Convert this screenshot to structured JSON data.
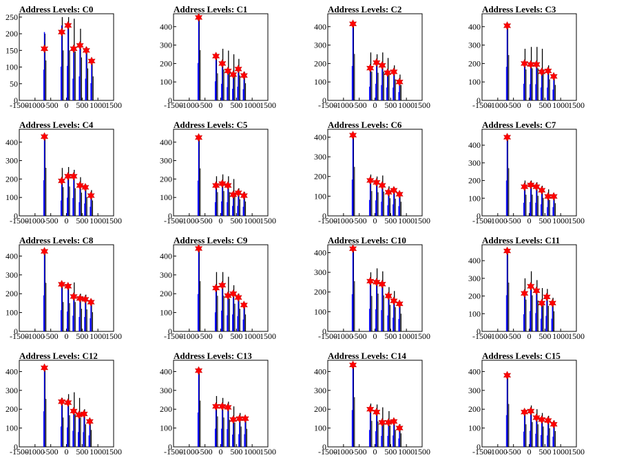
{
  "figure": {
    "colors": {
      "histogram": "#000000",
      "fit": "#0000ff",
      "marker": "#ff0000",
      "axis": "#000000"
    }
  },
  "chart_data": [
    {
      "type": "histogram",
      "title": "Address Levels: C0",
      "xlim": [
        -1500,
        1500
      ],
      "ylim": [
        0,
        260
      ],
      "yticks": [
        0,
        50,
        100,
        150,
        200,
        250
      ],
      "xticks": [
        -1500,
        -1000,
        -500,
        0,
        500,
        1000,
        1500
      ],
      "peaks": [
        {
          "x": -700,
          "hist": 200,
          "fit": 205,
          "marker": 155
        },
        {
          "x": -150,
          "hist": 250,
          "fit": 225,
          "marker": 205
        },
        {
          "x": 50,
          "hist": 250,
          "fit": 230,
          "marker": 225
        },
        {
          "x": 230,
          "hist": 245,
          "fit": 145,
          "marker": 155
        },
        {
          "x": 430,
          "hist": 215,
          "fit": 160,
          "marker": 165
        },
        {
          "x": 630,
          "hist": 160,
          "fit": 145,
          "marker": 150
        },
        {
          "x": 800,
          "hist": 120,
          "fit": 115,
          "marker": 118
        }
      ]
    },
    {
      "type": "histogram",
      "title": "Address Levels: C1",
      "xlim": [
        -1500,
        1500
      ],
      "ylim": [
        0,
        470
      ],
      "yticks": [
        0,
        100,
        200,
        300,
        400
      ],
      "xticks": [
        -1500,
        -1000,
        -500,
        0,
        500,
        1000,
        1500
      ],
      "peaks": [
        {
          "x": -700,
          "hist": 455,
          "fit": 450,
          "marker": 450
        },
        {
          "x": -150,
          "hist": 245,
          "fit": 230,
          "marker": 240
        },
        {
          "x": 50,
          "hist": 280,
          "fit": 200,
          "marker": 200
        },
        {
          "x": 230,
          "hist": 270,
          "fit": 160,
          "marker": 160
        },
        {
          "x": 400,
          "hist": 250,
          "fit": 140,
          "marker": 140
        },
        {
          "x": 560,
          "hist": 225,
          "fit": 165,
          "marker": 170
        },
        {
          "x": 740,
          "hist": 155,
          "fit": 135,
          "marker": 135
        }
      ]
    },
    {
      "type": "histogram",
      "title": "Address Levels: C2",
      "xlim": [
        -1500,
        1500
      ],
      "ylim": [
        0,
        470
      ],
      "yticks": [
        0,
        100,
        200,
        300,
        400
      ],
      "xticks": [
        -1500,
        -1000,
        -500,
        0,
        500,
        1000,
        1500
      ],
      "peaks": [
        {
          "x": -700,
          "hist": 420,
          "fit": 415,
          "marker": 415
        },
        {
          "x": -150,
          "hist": 260,
          "fit": 165,
          "marker": 175
        },
        {
          "x": 50,
          "hist": 250,
          "fit": 200,
          "marker": 205
        },
        {
          "x": 230,
          "hist": 260,
          "fit": 185,
          "marker": 190
        },
        {
          "x": 400,
          "hist": 230,
          "fit": 155,
          "marker": 150
        },
        {
          "x": 600,
          "hist": 190,
          "fit": 155,
          "marker": 155
        },
        {
          "x": 780,
          "hist": 140,
          "fit": 100,
          "marker": 100
        }
      ]
    },
    {
      "type": "histogram",
      "title": "Address Levels: C3",
      "xlim": [
        -1500,
        1500
      ],
      "ylim": [
        0,
        470
      ],
      "yticks": [
        0,
        100,
        200,
        300,
        400
      ],
      "xticks": [
        -1500,
        -1000,
        -500,
        0,
        500,
        1000,
        1500
      ],
      "peaks": [
        {
          "x": -700,
          "hist": 410,
          "fit": 405,
          "marker": 405
        },
        {
          "x": -150,
          "hist": 280,
          "fit": 200,
          "marker": 200
        },
        {
          "x": 50,
          "hist": 290,
          "fit": 195,
          "marker": 195
        },
        {
          "x": 230,
          "hist": 290,
          "fit": 195,
          "marker": 195
        },
        {
          "x": 400,
          "hist": 280,
          "fit": 155,
          "marker": 155
        },
        {
          "x": 600,
          "hist": 190,
          "fit": 155,
          "marker": 160
        },
        {
          "x": 780,
          "hist": 140,
          "fit": 130,
          "marker": 130
        }
      ]
    },
    {
      "type": "histogram",
      "title": "Address Levels: C4",
      "xlim": [
        -1500,
        1500
      ],
      "ylim": [
        0,
        470
      ],
      "yticks": [
        0,
        100,
        200,
        300,
        400
      ],
      "xticks": [
        -1500,
        -1000,
        -500,
        0,
        500,
        1000,
        1500
      ],
      "peaks": [
        {
          "x": -700,
          "hist": 435,
          "fit": 430,
          "marker": 430
        },
        {
          "x": -150,
          "hist": 260,
          "fit": 185,
          "marker": 190
        },
        {
          "x": 50,
          "hist": 265,
          "fit": 220,
          "marker": 215
        },
        {
          "x": 230,
          "hist": 250,
          "fit": 215,
          "marker": 215
        },
        {
          "x": 430,
          "hist": 210,
          "fit": 165,
          "marker": 165
        },
        {
          "x": 600,
          "hist": 170,
          "fit": 150,
          "marker": 155
        },
        {
          "x": 780,
          "hist": 140,
          "fit": 110,
          "marker": 110
        }
      ]
    },
    {
      "type": "histogram",
      "title": "Address Levels: C5",
      "xlim": [
        -1500,
        1500
      ],
      "ylim": [
        0,
        470
      ],
      "yticks": [
        0,
        100,
        200,
        300,
        400
      ],
      "xticks": [
        -1500,
        -1000,
        -500,
        0,
        500,
        1000,
        1500
      ],
      "peaks": [
        {
          "x": -700,
          "hist": 430,
          "fit": 425,
          "marker": 425
        },
        {
          "x": -150,
          "hist": 215,
          "fit": 165,
          "marker": 165
        },
        {
          "x": 50,
          "hist": 225,
          "fit": 175,
          "marker": 175
        },
        {
          "x": 230,
          "hist": 215,
          "fit": 165,
          "marker": 165
        },
        {
          "x": 400,
          "hist": 200,
          "fit": 120,
          "marker": 115
        },
        {
          "x": 560,
          "hist": 150,
          "fit": 120,
          "marker": 125
        },
        {
          "x": 740,
          "hist": 130,
          "fit": 110,
          "marker": 110
        }
      ]
    },
    {
      "type": "histogram",
      "title": "Address Levels: C6",
      "xlim": [
        -1500,
        1500
      ],
      "ylim": [
        0,
        440
      ],
      "yticks": [
        0,
        100,
        200,
        300,
        400
      ],
      "xticks": [
        -1500,
        -1000,
        -500,
        0,
        500,
        1000,
        1500
      ],
      "peaks": [
        {
          "x": -700,
          "hist": 415,
          "fit": 410,
          "marker": 410
        },
        {
          "x": -150,
          "hist": 210,
          "fit": 180,
          "marker": 180
        },
        {
          "x": 50,
          "hist": 200,
          "fit": 175,
          "marker": 170
        },
        {
          "x": 230,
          "hist": 205,
          "fit": 160,
          "marker": 155
        },
        {
          "x": 430,
          "hist": 150,
          "fit": 120,
          "marker": 120
        },
        {
          "x": 600,
          "hist": 145,
          "fit": 130,
          "marker": 130
        },
        {
          "x": 780,
          "hist": 120,
          "fit": 110,
          "marker": 110
        }
      ]
    },
    {
      "type": "histogram",
      "title": "Address Levels: C7",
      "xlim": [
        -1500,
        1500
      ],
      "ylim": [
        0,
        490
      ],
      "yticks": [
        0,
        100,
        200,
        300,
        400
      ],
      "xticks": [
        -1500,
        -1000,
        -500,
        0,
        500,
        1000,
        1500
      ],
      "peaks": [
        {
          "x": -700,
          "hist": 450,
          "fit": 445,
          "marker": 445
        },
        {
          "x": -150,
          "hist": 200,
          "fit": 165,
          "marker": 165
        },
        {
          "x": 50,
          "hist": 200,
          "fit": 175,
          "marker": 175
        },
        {
          "x": 230,
          "hist": 190,
          "fit": 165,
          "marker": 165
        },
        {
          "x": 400,
          "hist": 170,
          "fit": 145,
          "marker": 145
        },
        {
          "x": 600,
          "hist": 150,
          "fit": 110,
          "marker": 110
        },
        {
          "x": 780,
          "hist": 120,
          "fit": 110,
          "marker": 110
        }
      ]
    },
    {
      "type": "histogram",
      "title": "Address Levels: C8",
      "xlim": [
        -1500,
        1500
      ],
      "ylim": [
        0,
        460
      ],
      "yticks": [
        0,
        100,
        200,
        300,
        400
      ],
      "xticks": [
        -1500,
        -1000,
        -500,
        0,
        500,
        1000,
        1500
      ],
      "peaks": [
        {
          "x": -700,
          "hist": 430,
          "fit": 425,
          "marker": 425
        },
        {
          "x": -150,
          "hist": 260,
          "fit": 250,
          "marker": 250
        },
        {
          "x": 50,
          "hist": 250,
          "fit": 235,
          "marker": 240
        },
        {
          "x": 230,
          "hist": 260,
          "fit": 185,
          "marker": 185
        },
        {
          "x": 430,
          "hist": 200,
          "fit": 170,
          "marker": 175
        },
        {
          "x": 600,
          "hist": 195,
          "fit": 170,
          "marker": 170
        },
        {
          "x": 780,
          "hist": 170,
          "fit": 155,
          "marker": 155
        }
      ]
    },
    {
      "type": "histogram",
      "title": "Address Levels: C9",
      "xlim": [
        -1500,
        1500
      ],
      "ylim": [
        0,
        460
      ],
      "yticks": [
        0,
        100,
        200,
        300,
        400
      ],
      "xticks": [
        -1500,
        -1000,
        -500,
        0,
        500,
        1000,
        1500
      ],
      "peaks": [
        {
          "x": -700,
          "hist": 445,
          "fit": 440,
          "marker": 440
        },
        {
          "x": -150,
          "hist": 315,
          "fit": 225,
          "marker": 230
        },
        {
          "x": 50,
          "hist": 315,
          "fit": 245,
          "marker": 245
        },
        {
          "x": 230,
          "hist": 290,
          "fit": 190,
          "marker": 190
        },
        {
          "x": 400,
          "hist": 245,
          "fit": 200,
          "marker": 200
        },
        {
          "x": 560,
          "hist": 200,
          "fit": 180,
          "marker": 180
        },
        {
          "x": 740,
          "hist": 150,
          "fit": 140,
          "marker": 140
        }
      ]
    },
    {
      "type": "histogram",
      "title": "Address Levels: C10",
      "xlim": [
        -1500,
        1500
      ],
      "ylim": [
        0,
        440
      ],
      "yticks": [
        0,
        100,
        200,
        300,
        400
      ],
      "xticks": [
        -1500,
        -1000,
        -500,
        0,
        500,
        1000,
        1500
      ],
      "peaks": [
        {
          "x": -700,
          "hist": 425,
          "fit": 420,
          "marker": 420
        },
        {
          "x": -150,
          "hist": 300,
          "fit": 255,
          "marker": 255
        },
        {
          "x": 50,
          "hist": 320,
          "fit": 250,
          "marker": 250
        },
        {
          "x": 230,
          "hist": 305,
          "fit": 240,
          "marker": 240
        },
        {
          "x": 430,
          "hist": 225,
          "fit": 180,
          "marker": 180
        },
        {
          "x": 600,
          "hist": 205,
          "fit": 155,
          "marker": 155
        },
        {
          "x": 780,
          "hist": 150,
          "fit": 140,
          "marker": 140
        }
      ]
    },
    {
      "type": "histogram",
      "title": "Address Levels: C11",
      "xlim": [
        -1500,
        1500
      ],
      "ylim": [
        0,
        490
      ],
      "yticks": [
        0,
        100,
        200,
        300,
        400
      ],
      "xticks": [
        -1500,
        -1000,
        -500,
        0,
        500,
        1000,
        1500
      ],
      "peaks": [
        {
          "x": -700,
          "hist": 460,
          "fit": 455,
          "marker": 455
        },
        {
          "x": -150,
          "hist": 300,
          "fit": 215,
          "marker": 215
        },
        {
          "x": 50,
          "hist": 340,
          "fit": 255,
          "marker": 255
        },
        {
          "x": 230,
          "hist": 290,
          "fit": 230,
          "marker": 230
        },
        {
          "x": 400,
          "hist": 245,
          "fit": 160,
          "marker": 160
        },
        {
          "x": 560,
          "hist": 240,
          "fit": 195,
          "marker": 195
        },
        {
          "x": 740,
          "hist": 190,
          "fit": 160,
          "marker": 160
        }
      ]
    },
    {
      "type": "histogram",
      "title": "Address Levels: C12",
      "xlim": [
        -1500,
        1500
      ],
      "ylim": [
        0,
        460
      ],
      "yticks": [
        0,
        100,
        200,
        300,
        400
      ],
      "xticks": [
        -1500,
        -1000,
        -500,
        0,
        500,
        1000,
        1500
      ],
      "peaks": [
        {
          "x": -700,
          "hist": 425,
          "fit": 420,
          "marker": 420
        },
        {
          "x": -150,
          "hist": 260,
          "fit": 240,
          "marker": 240
        },
        {
          "x": 50,
          "hist": 280,
          "fit": 230,
          "marker": 235
        },
        {
          "x": 230,
          "hist": 290,
          "fit": 190,
          "marker": 190
        },
        {
          "x": 400,
          "hist": 260,
          "fit": 175,
          "marker": 170
        },
        {
          "x": 560,
          "hist": 200,
          "fit": 175,
          "marker": 175
        },
        {
          "x": 740,
          "hist": 150,
          "fit": 135,
          "marker": 135
        }
      ]
    },
    {
      "type": "histogram",
      "title": "Address Levels: C13",
      "xlim": [
        -1500,
        1500
      ],
      "ylim": [
        0,
        460
      ],
      "yticks": [
        0,
        100,
        200,
        300,
        400
      ],
      "xticks": [
        -1500,
        -1000,
        -500,
        0,
        500,
        1000,
        1500
      ],
      "peaks": [
        {
          "x": -700,
          "hist": 410,
          "fit": 405,
          "marker": 405
        },
        {
          "x": -150,
          "hist": 270,
          "fit": 215,
          "marker": 215
        },
        {
          "x": 50,
          "hist": 260,
          "fit": 215,
          "marker": 215
        },
        {
          "x": 230,
          "hist": 240,
          "fit": 210,
          "marker": 210
        },
        {
          "x": 400,
          "hist": 215,
          "fit": 145,
          "marker": 145
        },
        {
          "x": 600,
          "hist": 180,
          "fit": 150,
          "marker": 150
        },
        {
          "x": 780,
          "hist": 160,
          "fit": 150,
          "marker": 150
        }
      ]
    },
    {
      "type": "histogram",
      "title": "Address Levels: C14",
      "xlim": [
        -1500,
        1500
      ],
      "ylim": [
        0,
        460
      ],
      "yticks": [
        0,
        100,
        200,
        300,
        400
      ],
      "xticks": [
        -1500,
        -1000,
        -500,
        0,
        500,
        1000,
        1500
      ],
      "peaks": [
        {
          "x": -700,
          "hist": 440,
          "fit": 435,
          "marker": 435
        },
        {
          "x": -150,
          "hist": 230,
          "fit": 200,
          "marker": 200
        },
        {
          "x": 50,
          "hist": 225,
          "fit": 185,
          "marker": 185
        },
        {
          "x": 230,
          "hist": 210,
          "fit": 130,
          "marker": 130
        },
        {
          "x": 430,
          "hist": 190,
          "fit": 130,
          "marker": 130
        },
        {
          "x": 600,
          "hist": 150,
          "fit": 135,
          "marker": 135
        },
        {
          "x": 780,
          "hist": 120,
          "fit": 100,
          "marker": 100
        }
      ]
    },
    {
      "type": "histogram",
      "title": "Address Levels: C15",
      "xlim": [
        -1500,
        1500
      ],
      "ylim": [
        0,
        460
      ],
      "yticks": [
        0,
        100,
        200,
        300,
        400
      ],
      "xticks": [
        -1500,
        -1000,
        -500,
        0,
        500,
        1000,
        1500
      ],
      "peaks": [
        {
          "x": -700,
          "hist": 380,
          "fit": 375,
          "marker": 380
        },
        {
          "x": -150,
          "hist": 200,
          "fit": 180,
          "marker": 185
        },
        {
          "x": 50,
          "hist": 220,
          "fit": 190,
          "marker": 190
        },
        {
          "x": 230,
          "hist": 200,
          "fit": 155,
          "marker": 155
        },
        {
          "x": 400,
          "hist": 180,
          "fit": 140,
          "marker": 145
        },
        {
          "x": 600,
          "hist": 165,
          "fit": 135,
          "marker": 140
        },
        {
          "x": 780,
          "hist": 140,
          "fit": 120,
          "marker": 120
        }
      ]
    }
  ]
}
